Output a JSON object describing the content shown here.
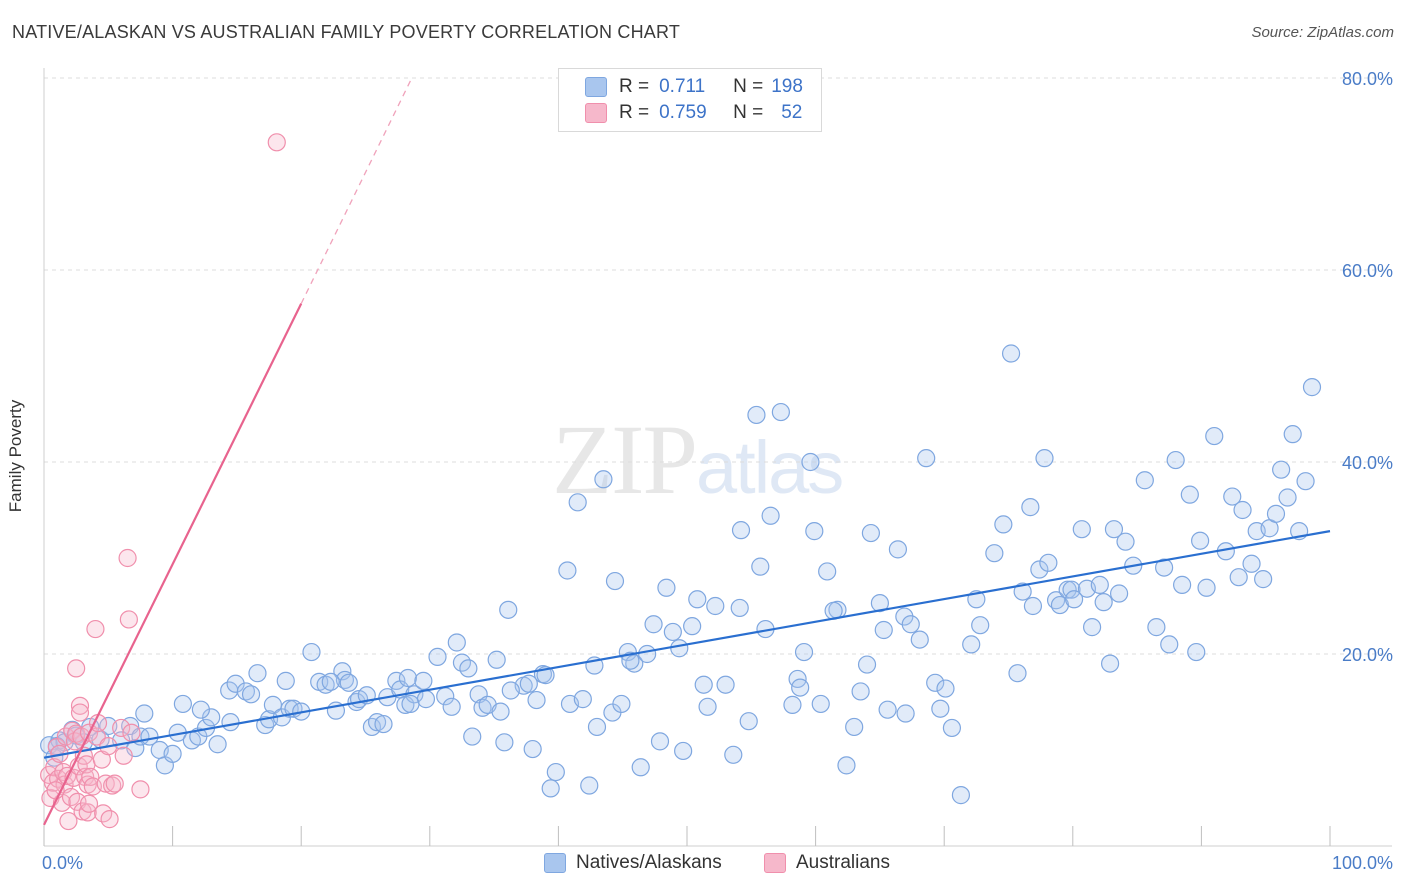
{
  "header": {
    "title": "NATIVE/ALASKAN VS AUSTRALIAN FAMILY POVERTY CORRELATION CHART",
    "source": "Source: ZipAtlas.com"
  },
  "watermark": {
    "zip": "ZIP",
    "atlas": "atlas"
  },
  "legend": {
    "rows": [
      {
        "r_label": "R =",
        "r_value": "0.711",
        "n_label": "N =",
        "n_value": "198",
        "color": "#a9c6ee"
      },
      {
        "r_label": "R =",
        "r_value": "0.759",
        "n_label": "N =",
        "n_value": "52",
        "color": "#f6b8cb"
      }
    ]
  },
  "bottom_legend": [
    {
      "label": "Natives/Alaskans",
      "color": "#a9c6ee"
    },
    {
      "label": "Australians",
      "color": "#f6b8cb"
    }
  ],
  "colors": {
    "blue_fill": "rgba(169,198,238,0.35)",
    "blue_stroke": "#7fa7e0",
    "blue_line": "#2a6fd0",
    "pink_fill": "rgba(246,184,203,0.35)",
    "pink_stroke": "#f08fac",
    "pink_line": "#e8638e",
    "grid": "#dcdcdc",
    "axis_text": "#4a7cc7"
  },
  "chart_data": {
    "type": "scatter",
    "title": "NATIVE/ALASKAN VS AUSTRALIAN FAMILY POVERTY CORRELATION CHART",
    "xlabel": "",
    "ylabel": "Family Poverty",
    "xlim": [
      0,
      100
    ],
    "ylim": [
      0,
      80
    ],
    "x_tick_labels": [
      "0.0%",
      "100.0%"
    ],
    "y_ticks": [
      20,
      40,
      60,
      80
    ],
    "y_tick_labels": [
      "20.0%",
      "40.0%",
      "60.0%",
      "80.0%"
    ],
    "grid": true,
    "series": [
      {
        "name": "Natives/Alaskans",
        "R": 0.711,
        "N": 198,
        "trend": {
          "x": [
            0,
            100
          ],
          "y": [
            9.2,
            32.8
          ]
        },
        "points": [
          [
            0.4,
            10.5
          ],
          [
            0.8,
            9.2
          ],
          [
            1.2,
            11
          ],
          [
            1.6,
            10.8
          ],
          [
            2.2,
            12.1
          ],
          [
            2.5,
            11.5
          ],
          [
            3.6,
            12.4
          ],
          [
            4.4,
            11.1
          ],
          [
            5,
            12.5
          ],
          [
            6,
            11
          ],
          [
            6.7,
            12.5
          ],
          [
            7.1,
            10.2
          ],
          [
            7.5,
            11.4
          ],
          [
            7.8,
            13.8
          ],
          [
            8.2,
            11.4
          ],
          [
            9,
            10
          ],
          [
            9.4,
            8.4
          ],
          [
            10,
            9.6
          ],
          [
            10.4,
            11.8
          ],
          [
            10.8,
            14.8
          ],
          [
            11.5,
            11
          ],
          [
            12,
            11.4
          ],
          [
            12.6,
            12.3
          ],
          [
            13,
            13.4
          ],
          [
            13.5,
            10.6
          ],
          [
            14.4,
            16.2
          ],
          [
            14.5,
            12.9
          ],
          [
            14.9,
            16.9
          ],
          [
            15.7,
            16.1
          ],
          [
            16.1,
            15.8
          ],
          [
            16.6,
            18
          ],
          [
            17.2,
            12.6
          ],
          [
            17.5,
            13.2
          ],
          [
            17.8,
            14.7
          ],
          [
            18.5,
            13.4
          ],
          [
            18.8,
            17.2
          ],
          [
            19.1,
            14.3
          ],
          [
            19.4,
            14.3
          ],
          [
            20,
            14
          ],
          [
            20.8,
            20.2
          ],
          [
            21.4,
            17.1
          ],
          [
            21.9,
            16.8
          ],
          [
            22.7,
            14.1
          ],
          [
            23.2,
            18.2
          ],
          [
            23.4,
            17.3
          ],
          [
            23.7,
            17
          ],
          [
            24.3,
            15
          ],
          [
            24.5,
            15.3
          ],
          [
            25.1,
            15.7
          ],
          [
            25.5,
            12.4
          ],
          [
            25.9,
            12.9
          ],
          [
            26.4,
            12.7
          ],
          [
            26.7,
            15.5
          ],
          [
            27.4,
            17.2
          ],
          [
            27.7,
            16.3
          ],
          [
            28.1,
            14.7
          ],
          [
            28.3,
            17.5
          ],
          [
            28.8,
            15.8
          ],
          [
            29.5,
            17.2
          ],
          [
            29.7,
            15.3
          ],
          [
            30.6,
            19.7
          ],
          [
            31.2,
            15.6
          ],
          [
            31.7,
            14.5
          ],
          [
            32.1,
            21.2
          ],
          [
            32.5,
            19.1
          ],
          [
            33.3,
            11.4
          ],
          [
            33.8,
            15.8
          ],
          [
            34.1,
            14.4
          ],
          [
            34.5,
            14.7
          ],
          [
            35.2,
            19.4
          ],
          [
            35.5,
            14
          ],
          [
            35.8,
            10.8
          ],
          [
            36.1,
            24.6
          ],
          [
            37.3,
            16.7
          ],
          [
            37.7,
            16.9
          ],
          [
            38,
            10.1
          ],
          [
            38.3,
            15.2
          ],
          [
            38.8,
            17.9
          ],
          [
            39,
            17.8
          ],
          [
            39.4,
            6
          ],
          [
            39.8,
            7.7
          ],
          [
            40.7,
            28.7
          ],
          [
            40.9,
            14.8
          ],
          [
            41.5,
            35.8
          ],
          [
            41.9,
            15.3
          ],
          [
            42.4,
            6.3
          ],
          [
            42.8,
            18.8
          ],
          [
            43,
            12.4
          ],
          [
            43.5,
            38.2
          ],
          [
            44.4,
            27.6
          ],
          [
            44.2,
            13.9
          ],
          [
            44.9,
            14.8
          ],
          [
            45.4,
            20.2
          ],
          [
            45.9,
            19
          ],
          [
            46.4,
            8.2
          ],
          [
            46.9,
            20
          ],
          [
            47.4,
            23.1
          ],
          [
            47.9,
            10.9
          ],
          [
            48.4,
            26.9
          ],
          [
            48.9,
            22.3
          ],
          [
            49.4,
            20.6
          ],
          [
            49.7,
            9.9
          ],
          [
            50.4,
            22.9
          ],
          [
            50.8,
            25.7
          ],
          [
            51.3,
            16.8
          ],
          [
            51.6,
            14.5
          ],
          [
            52.2,
            25
          ],
          [
            53,
            16.8
          ],
          [
            53.6,
            9.5
          ],
          [
            54.2,
            32.9
          ],
          [
            54.8,
            13
          ],
          [
            55.4,
            44.9
          ],
          [
            55.7,
            29.1
          ],
          [
            56.1,
            22.6
          ],
          [
            56.5,
            34.4
          ],
          [
            57.3,
            45.2
          ],
          [
            58.2,
            14.7
          ],
          [
            58.6,
            17.4
          ],
          [
            59.1,
            20.2
          ],
          [
            59.6,
            40
          ],
          [
            59.9,
            32.8
          ],
          [
            60.4,
            14.8
          ],
          [
            60.9,
            28.6
          ],
          [
            61.7,
            24.6
          ],
          [
            62.4,
            8.4
          ],
          [
            63,
            12.4
          ],
          [
            63.5,
            16.1
          ],
          [
            64,
            18.9
          ],
          [
            64.3,
            32.6
          ],
          [
            65,
            25.3
          ],
          [
            65.3,
            22.5
          ],
          [
            65.6,
            14.2
          ],
          [
            66.4,
            30.9
          ],
          [
            66.9,
            23.9
          ],
          [
            67.4,
            23.1
          ],
          [
            68.1,
            21.5
          ],
          [
            68.6,
            40.4
          ],
          [
            69.3,
            17
          ],
          [
            69.7,
            14.3
          ],
          [
            70.1,
            16.4
          ],
          [
            70.6,
            12.3
          ],
          [
            71.3,
            5.3
          ],
          [
            72.1,
            21
          ],
          [
            72.5,
            25.7
          ],
          [
            72.8,
            23
          ],
          [
            73.9,
            30.5
          ],
          [
            74.6,
            33.5
          ],
          [
            75.2,
            51.3
          ],
          [
            75.7,
            18
          ],
          [
            76.1,
            26.5
          ],
          [
            76.7,
            35.3
          ],
          [
            76.9,
            25
          ],
          [
            77.4,
            28.8
          ],
          [
            77.8,
            40.4
          ],
          [
            78.1,
            29.5
          ],
          [
            78.7,
            25.6
          ],
          [
            79,
            25.1
          ],
          [
            79.6,
            26.7
          ],
          [
            79.9,
            26.7
          ],
          [
            80.1,
            25.7
          ],
          [
            80.7,
            33
          ],
          [
            81.1,
            26.8
          ],
          [
            81.5,
            22.8
          ],
          [
            82.1,
            27.2
          ],
          [
            82.4,
            25.4
          ],
          [
            82.9,
            19
          ],
          [
            83.2,
            33
          ],
          [
            83.6,
            26.3
          ],
          [
            84.1,
            31.7
          ],
          [
            84.7,
            29.2
          ],
          [
            85.6,
            38.1
          ],
          [
            86.5,
            22.8
          ],
          [
            87.1,
            29
          ],
          [
            87.5,
            21
          ],
          [
            88,
            40.2
          ],
          [
            88.5,
            27.2
          ],
          [
            89.1,
            36.6
          ],
          [
            89.6,
            20.2
          ],
          [
            89.9,
            31.8
          ],
          [
            90.4,
            26.9
          ],
          [
            91,
            42.7
          ],
          [
            91.9,
            30.7
          ],
          [
            92.4,
            36.4
          ],
          [
            92.9,
            28
          ],
          [
            93.2,
            35
          ],
          [
            93.9,
            29.4
          ],
          [
            94.3,
            32.8
          ],
          [
            94.8,
            27.8
          ],
          [
            95.3,
            33.1
          ],
          [
            95.8,
            34.6
          ],
          [
            96.2,
            39.2
          ],
          [
            96.7,
            36.3
          ],
          [
            97.1,
            42.9
          ],
          [
            97.6,
            32.8
          ],
          [
            98.1,
            38
          ],
          [
            98.6,
            47.8
          ],
          [
            61.4,
            24.5
          ],
          [
            54.1,
            24.8
          ],
          [
            58.8,
            16.5
          ],
          [
            45.6,
            19.3
          ],
          [
            36.3,
            16.2
          ],
          [
            28.5,
            14.8
          ],
          [
            22.3,
            17.1
          ],
          [
            12.2,
            14.2
          ],
          [
            33,
            18.5
          ],
          [
            67,
            13.8
          ],
          [
            1,
            10.4
          ],
          [
            3.1,
            10.8
          ]
        ]
      },
      {
        "name": "Australians",
        "R": 0.759,
        "N": 52,
        "trend": {
          "x": [
            0,
            20
          ],
          "y": [
            2.2,
            56.5
          ]
        },
        "trend_dashed": {
          "x": [
            20,
            28.6
          ],
          "y": [
            56.5,
            80
          ]
        },
        "points": [
          [
            0.4,
            7.4
          ],
          [
            0.5,
            5
          ],
          [
            0.7,
            6.6
          ],
          [
            0.8,
            8.2
          ],
          [
            1,
            10.3
          ],
          [
            1.1,
            7
          ],
          [
            1.2,
            9.6
          ],
          [
            1.4,
            4.5
          ],
          [
            1.5,
            7.7
          ],
          [
            1.6,
            6.4
          ],
          [
            1.7,
            11.4
          ],
          [
            1.8,
            7.3
          ],
          [
            1.9,
            2.6
          ],
          [
            2.1,
            5.1
          ],
          [
            2.2,
            12
          ],
          [
            2.3,
            7.1
          ],
          [
            2.4,
            10.9
          ],
          [
            2.5,
            11.7
          ],
          [
            2.5,
            18.5
          ],
          [
            2.6,
            4.6
          ],
          [
            2.7,
            8.3
          ],
          [
            2.8,
            14.6
          ],
          [
            2.8,
            13.9
          ],
          [
            2.9,
            11.4
          ],
          [
            3,
            3.6
          ],
          [
            3.1,
            9.4
          ],
          [
            3.2,
            7.2
          ],
          [
            3.3,
            8.5
          ],
          [
            3.4,
            6.4
          ],
          [
            3.4,
            3.5
          ],
          [
            3.5,
            11.8
          ],
          [
            3.5,
            4.4
          ],
          [
            3.6,
            7.2
          ],
          [
            3.8,
            6.2
          ],
          [
            4,
            22.6
          ],
          [
            4.1,
            11.4
          ],
          [
            4.2,
            12.8
          ],
          [
            4.5,
            9
          ],
          [
            4.6,
            3.4
          ],
          [
            4.8,
            6.5
          ],
          [
            5,
            10.4
          ],
          [
            5.1,
            2.8
          ],
          [
            5.3,
            6.3
          ],
          [
            5.5,
            6.5
          ],
          [
            6,
            12.3
          ],
          [
            6.2,
            9.4
          ],
          [
            6.5,
            30
          ],
          [
            6.6,
            23.6
          ],
          [
            6.8,
            11.8
          ],
          [
            7.5,
            5.9
          ],
          [
            18.1,
            73.3
          ],
          [
            0.9,
            5.8
          ]
        ]
      }
    ]
  }
}
